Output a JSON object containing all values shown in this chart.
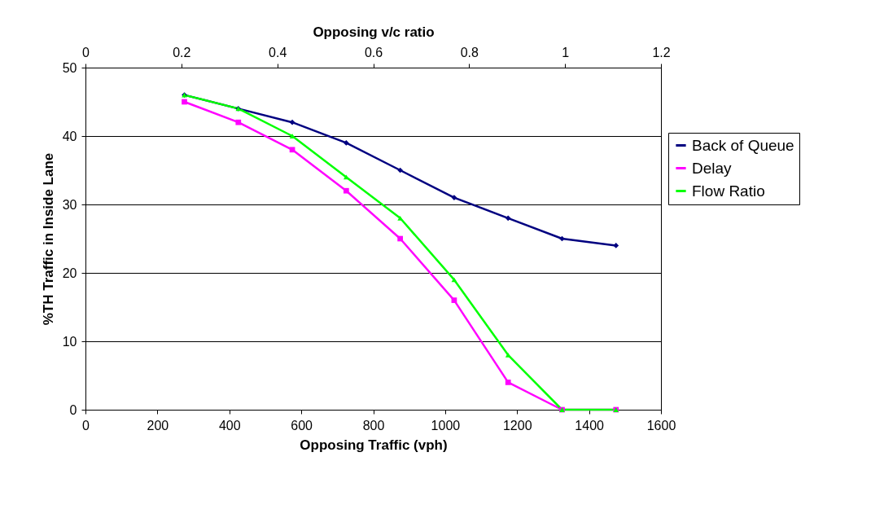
{
  "chart_data": {
    "type": "line",
    "xlabel": "Opposing Traffic (vph)",
    "ylabel": "%TH Traffic in Inside Lane",
    "x2label": "Opposing v/c ratio",
    "x": [
      275,
      425,
      575,
      725,
      875,
      1025,
      1175,
      1325,
      1475
    ],
    "xlim": [
      0,
      1600
    ],
    "xticks": [
      0,
      200,
      400,
      600,
      800,
      1000,
      1200,
      1400,
      1600
    ],
    "x2lim": [
      0,
      1.2
    ],
    "x2ticks": [
      0,
      0.2,
      0.4,
      0.6,
      0.8,
      1,
      1.2
    ],
    "ylim": [
      0,
      50
    ],
    "yticks": [
      0,
      10,
      20,
      30,
      40,
      50
    ],
    "grid": "y",
    "legend": "right",
    "line_style": "solid",
    "series": [
      {
        "name": "Back of Queue",
        "color": "#000080",
        "marker": "diamond",
        "values": [
          46,
          44,
          42,
          39,
          35,
          31,
          28,
          25,
          24
        ]
      },
      {
        "name": "Delay",
        "color": "#ff00ff",
        "marker": "square",
        "values": [
          45,
          42,
          38,
          32,
          25,
          16,
          4,
          0,
          0
        ]
      },
      {
        "name": "Flow Ratio",
        "color": "#00ff00",
        "marker": "triangle",
        "values": [
          46,
          44,
          40,
          34,
          28,
          19,
          8,
          0,
          0
        ]
      }
    ]
  }
}
